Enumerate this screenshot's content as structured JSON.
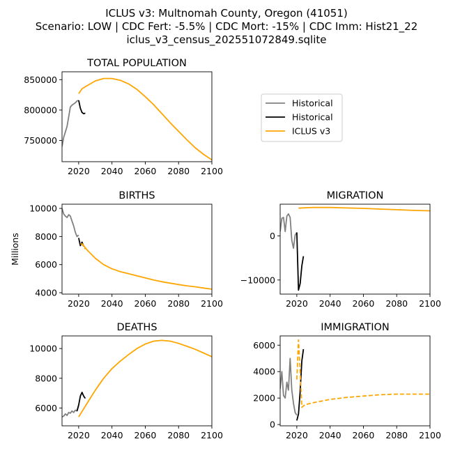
{
  "figure": {
    "title_lines": [
      "ICLUS v3: Multnomah County, Oregon (41051)",
      "Scenario: LOW | CDC Fert: -5.5% | CDC Mort: -15% | CDC Imm: Hist21_22",
      "iclus_v3_census_202551072849.sqlite"
    ]
  },
  "legend": {
    "entries": [
      {
        "label": "Historical",
        "color": "#808080"
      },
      {
        "label": "Historical",
        "color": "#000000"
      },
      {
        "label": "ICLUS v3",
        "color": "#FFA500"
      }
    ]
  },
  "colors": {
    "hist_gray": "#808080",
    "hist_black": "#000000",
    "iclus": "#FFA500"
  },
  "chart_data": [
    {
      "type": "line",
      "id": "total",
      "title": "TOTAL POPULATION",
      "xlabel": "",
      "ylabel": "",
      "xlim": [
        2010,
        2100
      ],
      "ylim": [
        715000,
        863000
      ],
      "xticks": [
        2020,
        2040,
        2060,
        2080,
        2100
      ],
      "xtick_labels": [
        "2020",
        "2040",
        "2060",
        "2080",
        "2100"
      ],
      "yticks": [
        750000,
        800000,
        850000
      ],
      "ytick_labels": [
        "750000",
        "800000",
        "850000"
      ],
      "series": [
        {
          "style": "hist_gray",
          "x": [
            2010,
            2011,
            2012,
            2013,
            2014,
            2015,
            2016,
            2017,
            2018,
            2019,
            2020
          ],
          "y": [
            740000,
            755000,
            764000,
            773000,
            789000,
            805000,
            808000,
            810000,
            812000,
            815000,
            816000
          ]
        },
        {
          "style": "hist_black",
          "x": [
            2020,
            2021,
            2022,
            2023,
            2024
          ],
          "y": [
            816000,
            803000,
            796000,
            794000,
            795000
          ]
        },
        {
          "style": "iclus",
          "x": [
            2020,
            2022,
            2025,
            2030,
            2035,
            2040,
            2045,
            2050,
            2055,
            2060,
            2065,
            2070,
            2075,
            2080,
            2085,
            2090,
            2095,
            2100
          ],
          "y": [
            827000,
            835000,
            840000,
            848000,
            852000,
            852000,
            849000,
            843000,
            834000,
            822000,
            809000,
            794000,
            779000,
            765000,
            751000,
            738000,
            727000,
            718000
          ]
        }
      ]
    },
    {
      "type": "line",
      "id": "births",
      "title": "BIRTHS",
      "xlabel": "",
      "ylabel": "Millions",
      "xlim": [
        2010,
        2100
      ],
      "ylim": [
        3900,
        10300
      ],
      "xticks": [
        2020,
        2040,
        2060,
        2080,
        2100
      ],
      "xtick_labels": [
        "2020",
        "2040",
        "2060",
        "2080",
        "2100"
      ],
      "yticks": [
        4000,
        6000,
        8000,
        10000
      ],
      "ytick_labels": [
        "4000",
        "6000",
        "8000",
        "10000"
      ],
      "series": [
        {
          "style": "hist_gray",
          "x": [
            2010,
            2011,
            2012,
            2013,
            2014,
            2015,
            2016,
            2017,
            2018,
            2019,
            2020
          ],
          "y": [
            10000,
            9600,
            9450,
            9350,
            9550,
            9450,
            9100,
            8750,
            8300,
            8000,
            8100
          ]
        },
        {
          "style": "hist_black",
          "x": [
            2020,
            2021,
            2022,
            2023
          ],
          "y": [
            7900,
            7350,
            7600,
            7300
          ]
        },
        {
          "style": "iclus_dash",
          "x": [
            2021,
            2022,
            2023,
            2024
          ],
          "y": [
            7500,
            7450,
            7300,
            7100
          ]
        },
        {
          "style": "iclus",
          "x": [
            2022,
            2025,
            2030,
            2035,
            2040,
            2045,
            2050,
            2055,
            2060,
            2065,
            2070,
            2075,
            2080,
            2085,
            2090,
            2095,
            2100
          ],
          "y": [
            7500,
            7050,
            6450,
            6000,
            5700,
            5500,
            5350,
            5200,
            5050,
            4900,
            4780,
            4680,
            4580,
            4490,
            4420,
            4330,
            4250
          ]
        }
      ]
    },
    {
      "type": "line",
      "id": "migration",
      "title": "MIGRATION",
      "xlabel": "",
      "ylabel": "",
      "xlim": [
        2010,
        2100
      ],
      "ylim": [
        -13200,
        7200
      ],
      "xticks": [
        2020,
        2040,
        2060,
        2080,
        2100
      ],
      "xtick_labels": [
        "2020",
        "2040",
        "2060",
        "2080",
        "2100"
      ],
      "yticks": [
        -10000,
        0
      ],
      "ytick_labels": [
        "−10000",
        "0"
      ],
      "series": [
        {
          "style": "hist_gray",
          "x": [
            2010,
            2011,
            2012,
            2013,
            2014,
            2015,
            2016,
            2017,
            2018,
            2019,
            2020
          ],
          "y": [
            1000,
            4000,
            4200,
            1000,
            4500,
            5000,
            4200,
            -1000,
            -2800,
            200,
            800
          ]
        },
        {
          "style": "hist_black",
          "x": [
            2020,
            2021,
            2022,
            2023,
            2024
          ],
          "y": [
            800,
            -12300,
            -10800,
            -6800,
            -4600
          ]
        },
        {
          "style": "iclus",
          "x": [
            2021,
            2025,
            2030,
            2040,
            2050,
            2060,
            2070,
            2080,
            2090,
            2100
          ],
          "y": [
            6300,
            6400,
            6450,
            6450,
            6350,
            6250,
            6100,
            5950,
            5800,
            5700
          ]
        }
      ]
    },
    {
      "type": "line",
      "id": "deaths",
      "title": "DEATHS",
      "xlabel": "",
      "ylabel": "",
      "xlim": [
        2010,
        2100
      ],
      "ylim": [
        4800,
        10850
      ],
      "xticks": [
        2020,
        2040,
        2060,
        2080,
        2100
      ],
      "xtick_labels": [
        "2020",
        "2040",
        "2060",
        "2080",
        "2100"
      ],
      "yticks": [
        6000,
        8000,
        10000
      ],
      "ytick_labels": [
        "6000",
        "8000",
        "10000"
      ],
      "series": [
        {
          "style": "hist_gray",
          "x": [
            2010,
            2011,
            2012,
            2013,
            2014,
            2015,
            2016,
            2017,
            2018,
            2019,
            2020
          ],
          "y": [
            5400,
            5450,
            5600,
            5500,
            5700,
            5650,
            5800,
            5700,
            5850,
            5800,
            6200
          ]
        },
        {
          "style": "hist_black",
          "x": [
            2019,
            2020,
            2021,
            2022,
            2023,
            2024
          ],
          "y": [
            5800,
            6200,
            6800,
            7050,
            6800,
            6650
          ]
        },
        {
          "style": "iclus",
          "x": [
            2020,
            2025,
            2030,
            2035,
            2040,
            2045,
            2050,
            2055,
            2060,
            2065,
            2070,
            2075,
            2080,
            2085,
            2090,
            2095,
            2100
          ],
          "y": [
            5400,
            6300,
            7200,
            8000,
            8650,
            9150,
            9600,
            10000,
            10300,
            10500,
            10550,
            10500,
            10350,
            10150,
            9950,
            9700,
            9450
          ]
        }
      ]
    },
    {
      "type": "line",
      "id": "immigration",
      "title": "IMMIGRATION",
      "xlabel": "",
      "ylabel": "",
      "xlim": [
        2010,
        2100
      ],
      "ylim": [
        -100,
        6700
      ],
      "xticks": [
        2020,
        2040,
        2060,
        2080,
        2100
      ],
      "xtick_labels": [
        "2020",
        "2040",
        "2060",
        "2080",
        "2100"
      ],
      "yticks": [
        0,
        2000,
        4000,
        6000
      ],
      "ytick_labels": [
        "0",
        "2000",
        "4000",
        "6000"
      ],
      "series": [
        {
          "style": "hist_gray",
          "x": [
            2010,
            2011,
            2012,
            2013,
            2014,
            2015,
            2016,
            2017,
            2018,
            2019,
            2020
          ],
          "y": [
            2700,
            4000,
            2200,
            2000,
            3200,
            2600,
            5000,
            2600,
            1600,
            900,
            700
          ]
        },
        {
          "style": "hist_black",
          "x": [
            2020,
            2021,
            2022,
            2023,
            2024
          ],
          "y": [
            300,
            800,
            2500,
            4800,
            5700
          ]
        },
        {
          "style": "iclus_dash",
          "x": [
            2020,
            2021,
            2022,
            2023,
            2025,
            2030,
            2040,
            2050,
            2060,
            2070,
            2080,
            2090,
            2100
          ],
          "y": [
            3400,
            6400,
            4000,
            1300,
            1500,
            1650,
            1900,
            2050,
            2150,
            2250,
            2300,
            2300,
            2300
          ]
        }
      ]
    }
  ]
}
